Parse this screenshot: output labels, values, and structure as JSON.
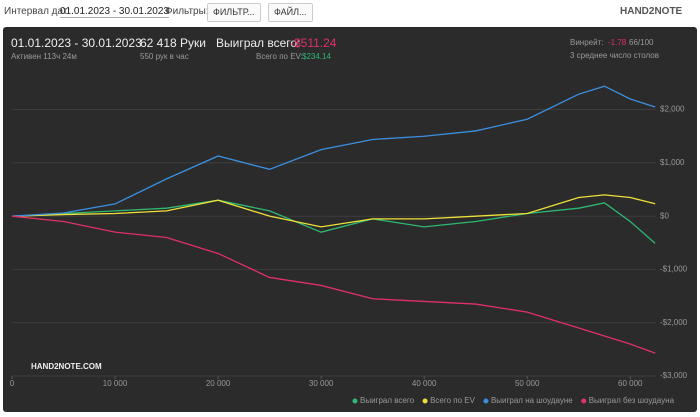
{
  "header": {
    "interval_label": "Интервал дат:",
    "interval": "01.01.2023 - 30.01.2023",
    "filters_label": "Фильтры:",
    "filter_button": "ФИЛЬТР...",
    "file_button": "ФАЙЛ...",
    "logo": "HAND2NOTE"
  },
  "stats": {
    "period": "01.01.2023 - 30.01.2023",
    "active": "Активен 113ч 24м",
    "hands": "62 418 Руки",
    "hands_per_hour": "550 рук в час",
    "won_label": "Выиграл всего:",
    "won": "-$511.24",
    "ev_label": "Всего по EV:",
    "ev": "$234.14",
    "winrate_label": "Винрейт:",
    "winrate": "-1.78",
    "winrate_per": "66/100",
    "tables": "3 среднее число столов",
    "watermark": "HAND2NOTE.COM"
  },
  "chart_data": {
    "type": "line",
    "x": [
      0,
      5000,
      10000,
      15000,
      20000,
      25000,
      30000,
      35000,
      40000,
      45000,
      50000,
      55000,
      57500,
      60000,
      62418
    ],
    "series": [
      {
        "name": "Выиграл всего",
        "color": "#2eb872",
        "values": [
          0,
          50,
          100,
          150,
          300,
          100,
          -300,
          -50,
          -200,
          -100,
          50,
          150,
          250,
          -100,
          -511
        ]
      },
      {
        "name": "Всего по EV",
        "color": "#eee03a",
        "values": [
          0,
          30,
          50,
          100,
          300,
          0,
          -200,
          -50,
          -50,
          0,
          50,
          350,
          400,
          350,
          234
        ]
      },
      {
        "name": "Выиграл на шоудауне",
        "color": "#3b8fe0",
        "values": [
          0,
          60,
          230,
          700,
          1130,
          880,
          1250,
          1440,
          1500,
          1600,
          1820,
          2290,
          2440,
          2200,
          2050
        ]
      },
      {
        "name": "Выиграл без шоудауна",
        "color": "#e0306a",
        "values": [
          0,
          -100,
          -300,
          -400,
          -700,
          -1150,
          -1300,
          -1550,
          -1600,
          -1650,
          -1800,
          -2100,
          -2250,
          -2400,
          -2570
        ]
      }
    ],
    "xlim": [
      0,
      62500
    ],
    "ylim": [
      -3000,
      2500
    ],
    "xticks": [
      0,
      {
        "value": 10000,
        "label": "10 000"
      },
      {
        "value": 20000,
        "label": "20 000"
      },
      {
        "value": 30000,
        "label": "30 000"
      },
      {
        "value": 40000,
        "label": "40 000"
      },
      {
        "value": 50000,
        "label": "50 000"
      },
      {
        "value": 60000,
        "label": "60 000"
      }
    ],
    "yticks": [
      {
        "value": 2000,
        "label": "$2,000"
      },
      {
        "value": 1000,
        "label": "$1,000"
      },
      {
        "value": 0,
        "label": "$0"
      },
      {
        "value": -1000,
        "label": "-$1,000"
      },
      {
        "value": -2000,
        "label": "-$2,000"
      },
      {
        "value": -3000,
        "label": "-$3,000"
      }
    ],
    "grid": true
  }
}
